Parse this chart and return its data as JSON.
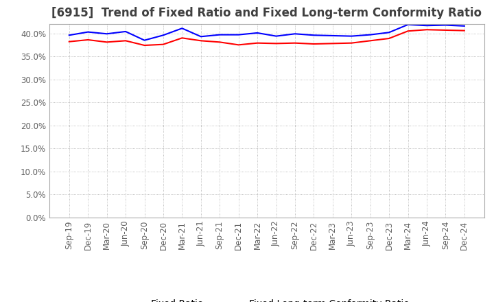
{
  "title": "[6915]  Trend of Fixed Ratio and Fixed Long-term Conformity Ratio",
  "legend_fixed_ratio": "Fixed Ratio",
  "legend_fixed_lt": "Fixed Long-term Conformity Ratio",
  "x_labels": [
    "Sep-19",
    "Dec-19",
    "Mar-20",
    "Jun-20",
    "Sep-20",
    "Dec-20",
    "Mar-21",
    "Jun-21",
    "Sep-21",
    "Dec-21",
    "Mar-22",
    "Jun-22",
    "Sep-22",
    "Dec-22",
    "Mar-23",
    "Jun-23",
    "Sep-23",
    "Dec-23",
    "Mar-24",
    "Jun-24",
    "Sep-24",
    "Dec-24"
  ],
  "fixed_ratio": [
    39.6,
    40.3,
    39.9,
    40.4,
    38.5,
    39.6,
    41.1,
    39.3,
    39.7,
    39.7,
    40.1,
    39.4,
    39.9,
    39.6,
    39.5,
    39.4,
    39.7,
    40.2,
    41.9,
    41.7,
    41.8,
    41.6
  ],
  "fixed_lt_ratio": [
    38.2,
    38.6,
    38.1,
    38.4,
    37.4,
    37.6,
    39.0,
    38.4,
    38.1,
    37.5,
    37.9,
    37.8,
    37.9,
    37.7,
    37.8,
    37.9,
    38.4,
    38.9,
    40.5,
    40.8,
    40.7,
    40.6
  ],
  "ylim": [
    0,
    42
  ],
  "yticks": [
    0.0,
    5.0,
    10.0,
    15.0,
    20.0,
    25.0,
    30.0,
    35.0,
    40.0
  ],
  "line_color_blue": "#0000FF",
  "line_color_red": "#FF0000",
  "background_color": "#FFFFFF",
  "plot_bg_color": "#FFFFFF",
  "grid_color": "#AAAAAA",
  "title_color": "#404040",
  "title_fontsize": 12,
  "tick_fontsize": 8.5,
  "legend_fontsize": 10
}
